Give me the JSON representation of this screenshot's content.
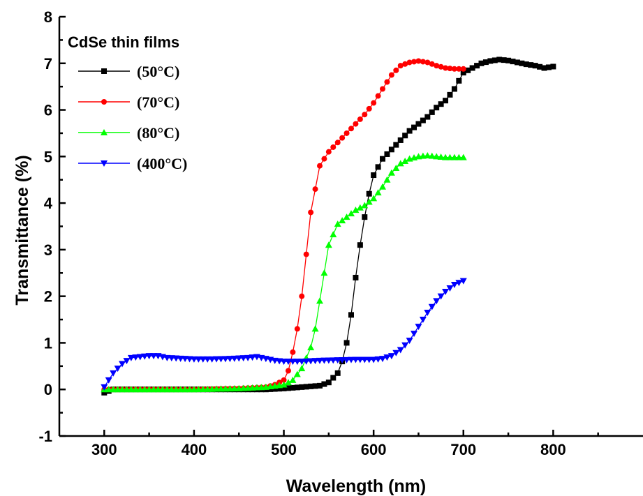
{
  "chart_data": {
    "type": "line",
    "xlabel": "Wavelength (nm)",
    "ylabel": "Transmittance (%)",
    "xlim": [
      250,
      900
    ],
    "ylim": [
      -1,
      8
    ],
    "xticks": [
      "300",
      "400",
      "500",
      "600",
      "700",
      "800"
    ],
    "yticks": [
      "-1",
      "0",
      "1",
      "2",
      "3",
      "4",
      "5",
      "6",
      "7",
      "8"
    ],
    "grid": false,
    "legend": {
      "placement": "top-left",
      "title": "CdSe thin films"
    },
    "series": [
      {
        "name": "(50°C)",
        "color": "#000000",
        "marker": "square",
        "points": [
          [
            300,
            -0.07
          ],
          [
            310,
            0.0
          ],
          [
            350,
            0.0
          ],
          [
            400,
            0.0
          ],
          [
            450,
            0.0
          ],
          [
            480,
            0.0
          ],
          [
            500,
            0.02
          ],
          [
            520,
            0.05
          ],
          [
            540,
            0.08
          ],
          [
            550,
            0.15
          ],
          [
            560,
            0.35
          ],
          [
            565,
            0.6
          ],
          [
            570,
            1.0
          ],
          [
            575,
            1.6
          ],
          [
            580,
            2.4
          ],
          [
            585,
            3.1
          ],
          [
            590,
            3.7
          ],
          [
            595,
            4.2
          ],
          [
            600,
            4.6
          ],
          [
            610,
            4.95
          ],
          [
            620,
            5.15
          ],
          [
            630,
            5.35
          ],
          [
            640,
            5.55
          ],
          [
            650,
            5.7
          ],
          [
            660,
            5.85
          ],
          [
            670,
            6.05
          ],
          [
            680,
            6.2
          ],
          [
            690,
            6.45
          ],
          [
            700,
            6.8
          ],
          [
            710,
            6.9
          ],
          [
            720,
            7.0
          ],
          [
            730,
            7.05
          ],
          [
            740,
            7.08
          ],
          [
            750,
            7.06
          ],
          [
            760,
            7.02
          ],
          [
            770,
            6.98
          ],
          [
            780,
            6.95
          ],
          [
            790,
            6.9
          ],
          [
            800,
            6.93
          ]
        ]
      },
      {
        "name": "(70°C)",
        "color": "#ff0000",
        "marker": "circle",
        "points": [
          [
            300,
            0.0
          ],
          [
            350,
            0.0
          ],
          [
            400,
            0.0
          ],
          [
            450,
            0.02
          ],
          [
            480,
            0.05
          ],
          [
            490,
            0.1
          ],
          [
            500,
            0.2
          ],
          [
            505,
            0.4
          ],
          [
            510,
            0.8
          ],
          [
            515,
            1.3
          ],
          [
            520,
            2.0
          ],
          [
            525,
            2.9
          ],
          [
            530,
            3.8
          ],
          [
            535,
            4.3
          ],
          [
            540,
            4.8
          ],
          [
            550,
            5.1
          ],
          [
            560,
            5.3
          ],
          [
            570,
            5.5
          ],
          [
            580,
            5.7
          ],
          [
            590,
            5.9
          ],
          [
            600,
            6.15
          ],
          [
            610,
            6.45
          ],
          [
            620,
            6.75
          ],
          [
            630,
            6.95
          ],
          [
            640,
            7.02
          ],
          [
            650,
            7.05
          ],
          [
            660,
            7.02
          ],
          [
            670,
            6.95
          ],
          [
            680,
            6.9
          ],
          [
            690,
            6.88
          ],
          [
            700,
            6.88
          ]
        ]
      },
      {
        "name": "(80°C)",
        "color": "#00ff00",
        "marker": "triangle-up",
        "points": [
          [
            300,
            0.0
          ],
          [
            350,
            0.0
          ],
          [
            400,
            0.0
          ],
          [
            450,
            0.02
          ],
          [
            480,
            0.05
          ],
          [
            500,
            0.1
          ],
          [
            510,
            0.2
          ],
          [
            520,
            0.45
          ],
          [
            530,
            0.9
          ],
          [
            535,
            1.3
          ],
          [
            540,
            1.9
          ],
          [
            545,
            2.5
          ],
          [
            550,
            3.1
          ],
          [
            560,
            3.55
          ],
          [
            570,
            3.7
          ],
          [
            580,
            3.85
          ],
          [
            590,
            3.95
          ],
          [
            600,
            4.1
          ],
          [
            610,
            4.35
          ],
          [
            620,
            4.65
          ],
          [
            630,
            4.85
          ],
          [
            640,
            4.95
          ],
          [
            650,
            5.0
          ],
          [
            660,
            5.02
          ],
          [
            670,
            5.0
          ],
          [
            680,
            4.98
          ],
          [
            690,
            4.98
          ],
          [
            700,
            4.98
          ]
        ]
      },
      {
        "name": "(400°C)",
        "color": "#0000ff",
        "marker": "triangle-down",
        "points": [
          [
            300,
            0.05
          ],
          [
            310,
            0.35
          ],
          [
            320,
            0.55
          ],
          [
            330,
            0.68
          ],
          [
            340,
            0.7
          ],
          [
            350,
            0.72
          ],
          [
            360,
            0.72
          ],
          [
            370,
            0.68
          ],
          [
            380,
            0.67
          ],
          [
            400,
            0.65
          ],
          [
            420,
            0.65
          ],
          [
            440,
            0.66
          ],
          [
            460,
            0.68
          ],
          [
            470,
            0.7
          ],
          [
            480,
            0.66
          ],
          [
            490,
            0.62
          ],
          [
            500,
            0.6
          ],
          [
            520,
            0.6
          ],
          [
            540,
            0.62
          ],
          [
            560,
            0.63
          ],
          [
            580,
            0.64
          ],
          [
            600,
            0.64
          ],
          [
            610,
            0.66
          ],
          [
            620,
            0.72
          ],
          [
            630,
            0.85
          ],
          [
            640,
            1.05
          ],
          [
            650,
            1.35
          ],
          [
            660,
            1.65
          ],
          [
            670,
            1.9
          ],
          [
            680,
            2.1
          ],
          [
            690,
            2.25
          ],
          [
            700,
            2.33
          ]
        ]
      }
    ]
  }
}
